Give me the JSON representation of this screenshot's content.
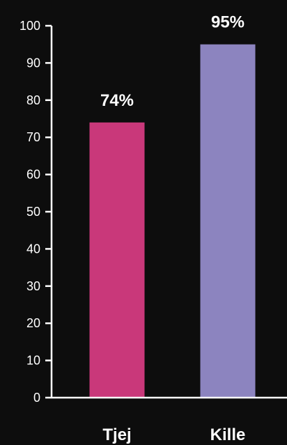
{
  "chart_data": {
    "type": "bar",
    "categories": [
      "Tjej",
      "Kille"
    ],
    "values": [
      74,
      95
    ],
    "data_labels": [
      "74%",
      "95%"
    ],
    "colors": [
      "#c9387a",
      "#8c84bf"
    ],
    "ylim": [
      0,
      100
    ],
    "yticks": [
      0,
      10,
      20,
      30,
      40,
      50,
      60,
      70,
      80,
      90,
      100
    ],
    "ytick_labels": [
      "0",
      "10",
      "20",
      "30",
      "40",
      "50",
      "60",
      "70",
      "80",
      "90",
      "100"
    ],
    "grid": false,
    "legend": "none",
    "axis_color": "#ffffff",
    "background": "#0d0d0d"
  }
}
